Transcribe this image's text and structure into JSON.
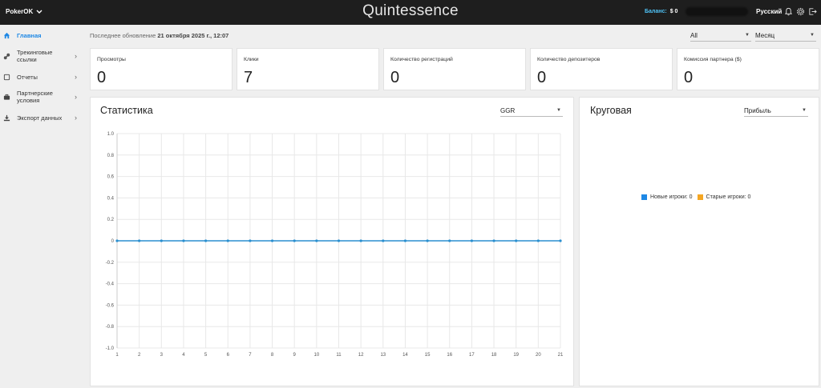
{
  "header": {
    "brand": "PokerOK",
    "app_title": "Quintessence",
    "balance_label": "Баланс:",
    "balance_value": "$ 0",
    "language": "Русский"
  },
  "sidebar": {
    "items": [
      {
        "label": "Главная",
        "icon": "home-icon",
        "active": true
      },
      {
        "label": "Трекинговые ссылки",
        "icon": "link-icon",
        "active": false
      },
      {
        "label": "Отчеты",
        "icon": "report-icon",
        "active": false
      },
      {
        "label": "Партнерские условия",
        "icon": "briefcase-icon",
        "active": false
      },
      {
        "label": "Экспорт данных",
        "icon": "download-icon",
        "active": false
      }
    ]
  },
  "update": {
    "prefix": "Последнее обновление",
    "datetime": "21 октября 2025 г., 12:07"
  },
  "filters": {
    "scope": "All",
    "period": "Месяц"
  },
  "stats": [
    {
      "title": "Просмотры",
      "value": "0"
    },
    {
      "title": "Клики",
      "value": "7"
    },
    {
      "title": "Количество регистраций",
      "value": "0"
    },
    {
      "title": "Количество депозитеров",
      "value": "0"
    },
    {
      "title": "Комиссия партнера ($)",
      "value": "0"
    }
  ],
  "statistics_panel": {
    "title": "Статистика",
    "metric_select": "GGR"
  },
  "pie_panel": {
    "title": "Круговая",
    "metric_select": "Прибыль",
    "legend": [
      {
        "label": "Новые игроки: 0",
        "color": "#1e88e5"
      },
      {
        "label": "Старые игроки: 0",
        "color": "#f5a623"
      }
    ]
  },
  "colors": {
    "accent": "#1e88e5",
    "line": "#2a8fd0",
    "topbar": "#1e1e1e"
  },
  "chart_data": {
    "type": "line",
    "title": "",
    "xlabel": "",
    "ylabel": "",
    "x": [
      1,
      2,
      3,
      4,
      5,
      6,
      7,
      8,
      9,
      10,
      11,
      12,
      13,
      14,
      15,
      16,
      17,
      18,
      19,
      20,
      21
    ],
    "series": [
      {
        "values": [
          0,
          0,
          0,
          0,
          0,
          0,
          0,
          0,
          0,
          0,
          0,
          0,
          0,
          0,
          0,
          0,
          0,
          0,
          0,
          0,
          0
        ]
      }
    ],
    "ylim": [
      -1.0,
      1.0
    ],
    "yticks": [
      "1.0",
      "0.8",
      "0.6",
      "0.4",
      "0.2",
      "0",
      "-0.2",
      "-0.4",
      "-0.6",
      "-0.8",
      "-1.0"
    ],
    "grid": true
  }
}
